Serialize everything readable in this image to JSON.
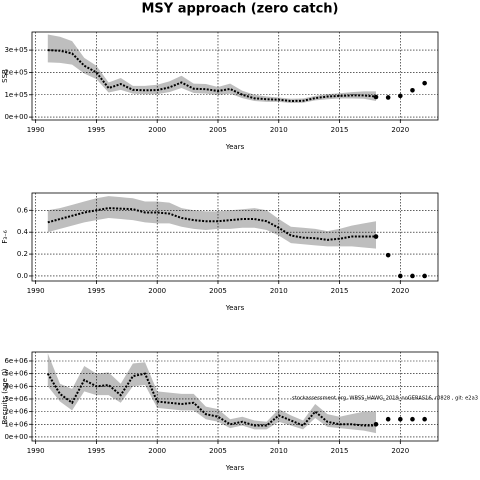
{
  "title": "MSY approach (zero catch)",
  "chart_data": [
    {
      "type": "line",
      "xlabel": "Years",
      "ylabel": "SSB",
      "x": [
        1991,
        1992,
        1993,
        1994,
        1995,
        1996,
        1997,
        1998,
        1999,
        2000,
        2001,
        2002,
        2003,
        2004,
        2005,
        2006,
        2007,
        2008,
        2009,
        2010,
        2011,
        2012,
        2013,
        2014,
        2015,
        2016,
        2017,
        2018
      ],
      "series": [
        {
          "color": "#000000",
          "values": [
            300000,
            297000,
            285000,
            230000,
            200000,
            130000,
            148000,
            122000,
            120000,
            121000,
            133000,
            155000,
            127000,
            125000,
            117000,
            126000,
            100000,
            84000,
            80000,
            78000,
            72000,
            73000,
            85000,
            92000,
            95000,
            97000,
            97000,
            92000
          ],
          "upper": [
            370000,
            360000,
            340000,
            265000,
            230000,
            155000,
            175000,
            140000,
            140000,
            145000,
            160000,
            185000,
            150000,
            148000,
            135000,
            150000,
            118000,
            100000,
            92000,
            88000,
            82000,
            83000,
            95000,
            103000,
            107000,
            112000,
            115000,
            115000
          ],
          "lower": [
            245000,
            243000,
            235000,
            195000,
            170000,
            110000,
            122000,
            105000,
            103000,
            103000,
            112000,
            130000,
            108000,
            105000,
            100000,
            105000,
            85000,
            72000,
            68000,
            68000,
            63000,
            64000,
            75000,
            80000,
            83000,
            83000,
            82000,
            72000
          ],
          "band_color": "#bebebe"
        }
      ],
      "projection": {
        "x": [
          2018,
          2019,
          2020,
          2021,
          2022
        ],
        "values": [
          90000,
          88000,
          95000,
          120000,
          152000
        ],
        "color": "#000000"
      },
      "xlim": [
        1989.7,
        2023.1
      ],
      "xticks": [
        1990,
        1995,
        2000,
        2005,
        2010,
        2015,
        2020
      ],
      "ylim": [
        -13000,
        381000
      ],
      "yticks": [
        {
          "value": 0,
          "label": "0e+00"
        },
        {
          "value": 100000,
          "label": "1e+05"
        },
        {
          "value": 200000,
          "label": "2e+05"
        },
        {
          "value": 300000,
          "label": "3e+05"
        }
      ],
      "grid": true
    },
    {
      "type": "line",
      "xlabel": "Years",
      "ylabel": "F₃₋₆",
      "x": [
        1991,
        1992,
        1993,
        1994,
        1995,
        1996,
        1997,
        1998,
        1999,
        2000,
        2001,
        2002,
        2003,
        2004,
        2005,
        2006,
        2007,
        2008,
        2009,
        2010,
        2011,
        2012,
        2013,
        2014,
        2015,
        2016,
        2017,
        2018
      ],
      "series": [
        {
          "color": "#000000",
          "values": [
            0.49,
            0.52,
            0.55,
            0.58,
            0.6,
            0.62,
            0.615,
            0.61,
            0.58,
            0.58,
            0.57,
            0.53,
            0.51,
            0.5,
            0.5,
            0.51,
            0.52,
            0.52,
            0.5,
            0.44,
            0.37,
            0.35,
            0.345,
            0.33,
            0.34,
            0.36,
            0.36,
            0.36
          ],
          "upper": [
            0.6,
            0.62,
            0.65,
            0.68,
            0.71,
            0.73,
            0.72,
            0.71,
            0.68,
            0.68,
            0.67,
            0.62,
            0.6,
            0.59,
            0.59,
            0.6,
            0.61,
            0.62,
            0.6,
            0.52,
            0.45,
            0.44,
            0.43,
            0.41,
            0.43,
            0.46,
            0.48,
            0.5
          ],
          "lower": [
            0.4,
            0.43,
            0.46,
            0.49,
            0.51,
            0.53,
            0.52,
            0.51,
            0.49,
            0.48,
            0.48,
            0.45,
            0.43,
            0.42,
            0.43,
            0.43,
            0.44,
            0.44,
            0.42,
            0.37,
            0.3,
            0.29,
            0.28,
            0.27,
            0.27,
            0.27,
            0.26,
            0.25
          ],
          "band_color": "#bebebe"
        }
      ],
      "projection": {
        "x": [
          2018,
          2019,
          2020,
          2021,
          2022
        ],
        "values": [
          0.36,
          0.19,
          0.0,
          0.0,
          0.0
        ],
        "color": "#000000"
      },
      "xlim": [
        1989.7,
        2023.1
      ],
      "xticks": [
        1990,
        1995,
        2000,
        2005,
        2010,
        2015,
        2020
      ],
      "ylim": [
        -0.046,
        0.758
      ],
      "yticks": [
        {
          "value": 0,
          "label": "0.0"
        },
        0.2,
        0.4,
        0.6
      ],
      "grid": true
    },
    {
      "type": "line",
      "xlabel": "Years",
      "ylabel": "Recruits (age 0)",
      "annotation": "stockassessment.org, WBSS_HAWG_2019_noGERAS16, r0828 , git: e2a3",
      "x": [
        1991,
        1992,
        1993,
        1994,
        1995,
        1996,
        1997,
        1998,
        1999,
        2000,
        2001,
        2002,
        2003,
        2004,
        2005,
        2006,
        2007,
        2008,
        2009,
        2010,
        2011,
        2012,
        2013,
        2014,
        2015,
        2016,
        2017,
        2018
      ],
      "series": [
        {
          "color": "#000000",
          "values": [
            5000000,
            3400000,
            2700000,
            4500000,
            4000000,
            4100000,
            3300000,
            4800000,
            5000000,
            2800000,
            2700000,
            2600000,
            2700000,
            1800000,
            1600000,
            1000000,
            1200000,
            900000,
            900000,
            1700000,
            1300000,
            900000,
            2000000,
            1200000,
            1000000,
            1000000,
            900000,
            900000
          ],
          "upper": [
            6600000,
            4200000,
            3800000,
            5600000,
            5000000,
            5100000,
            4200000,
            5800000,
            5900000,
            3600000,
            3500000,
            3400000,
            3400000,
            2400000,
            2200000,
            1400000,
            1600000,
            1300000,
            1200000,
            2200000,
            1700000,
            1300000,
            2600000,
            1800000,
            1600000,
            1800000,
            2000000,
            2000000
          ],
          "lower": [
            4000000,
            2800000,
            2100000,
            3600000,
            3300000,
            3300000,
            2700000,
            4000000,
            4100000,
            2300000,
            2200000,
            2100000,
            2100000,
            1400000,
            1200000,
            700000,
            900000,
            600000,
            600000,
            1200000,
            900000,
            600000,
            1500000,
            800000,
            700000,
            600000,
            500000,
            300000
          ],
          "band_color": "#bebebe"
        }
      ],
      "projection": {
        "x": [
          2018,
          2019,
          2020,
          2021,
          2022
        ],
        "values": [
          1000000,
          1400000,
          1400000,
          1400000,
          1400000
        ],
        "color": "#000000"
      },
      "xlim": [
        1989.7,
        2023.1
      ],
      "xticks": [
        1990,
        1995,
        2000,
        2005,
        2010,
        2015,
        2020
      ],
      "ylim": [
        -320000,
        6710000
      ],
      "yticks": [
        {
          "value": 0,
          "label": "0e+00"
        },
        {
          "value": 1000000,
          "label": "1e+06"
        },
        {
          "value": 2000000,
          "label": "2e+06"
        },
        {
          "value": 3000000,
          "label": "3e+06"
        },
        {
          "value": 4000000,
          "label": "4e+06"
        },
        {
          "value": 5000000,
          "label": "5e+06"
        },
        {
          "value": 6000000,
          "label": "6e+06"
        }
      ],
      "grid": true
    }
  ]
}
